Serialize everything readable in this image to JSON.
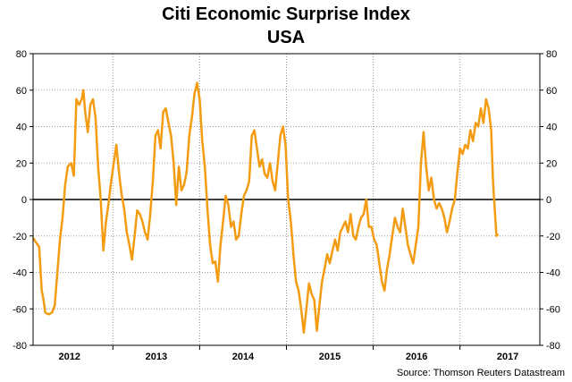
{
  "chart_data": {
    "type": "line",
    "title": "Citi Economic Surprise Index",
    "subtitle": "USA",
    "source": "Source: Thomson Reuters Datastream",
    "ylim": [
      -80,
      80
    ],
    "yticks": [
      80,
      60,
      40,
      20,
      0,
      -20,
      -40,
      -60,
      -80
    ],
    "xlim": [
      2011.58,
      2017.42
    ],
    "x_categories": [
      "2012",
      "2013",
      "2014",
      "2015",
      "2016",
      "2017"
    ],
    "x_category_centers": [
      2012.0,
      2013.0,
      2014.0,
      2015.0,
      2016.0,
      2017.05
    ],
    "x_dividers": [
      2012.5,
      2013.5,
      2014.5,
      2015.5,
      2016.5
    ],
    "grid": true,
    "series_color": "#f39c12",
    "zero_line_color": "#000000",
    "series": [
      {
        "name": "",
        "points": [
          [
            2011.58,
            -21
          ],
          [
            2011.62,
            -24
          ],
          [
            2011.65,
            -26
          ],
          [
            2011.68,
            -50
          ],
          [
            2011.7,
            -55
          ],
          [
            2011.72,
            -62
          ],
          [
            2011.76,
            -63
          ],
          [
            2011.8,
            -62
          ],
          [
            2011.83,
            -58
          ],
          [
            2011.86,
            -40
          ],
          [
            2011.89,
            -22
          ],
          [
            2011.92,
            -10
          ],
          [
            2011.95,
            8
          ],
          [
            2011.98,
            18
          ],
          [
            2012.02,
            20
          ],
          [
            2012.05,
            13
          ],
          [
            2012.08,
            55
          ],
          [
            2012.11,
            52
          ],
          [
            2012.14,
            55
          ],
          [
            2012.16,
            60
          ],
          [
            2012.18,
            48
          ],
          [
            2012.21,
            37
          ],
          [
            2012.24,
            52
          ],
          [
            2012.27,
            55
          ],
          [
            2012.3,
            45
          ],
          [
            2012.33,
            18
          ],
          [
            2012.36,
            0
          ],
          [
            2012.39,
            -28
          ],
          [
            2012.42,
            -12
          ],
          [
            2012.45,
            -2
          ],
          [
            2012.48,
            10
          ],
          [
            2012.51,
            20
          ],
          [
            2012.54,
            30
          ],
          [
            2012.57,
            15
          ],
          [
            2012.6,
            3
          ],
          [
            2012.63,
            -5
          ],
          [
            2012.66,
            -18
          ],
          [
            2012.69,
            -25
          ],
          [
            2012.72,
            -33
          ],
          [
            2012.75,
            -20
          ],
          [
            2012.78,
            -6
          ],
          [
            2012.81,
            -8
          ],
          [
            2012.84,
            -12
          ],
          [
            2012.87,
            -18
          ],
          [
            2012.9,
            -22
          ],
          [
            2012.93,
            -8
          ],
          [
            2012.96,
            10
          ],
          [
            2012.99,
            35
          ],
          [
            2013.02,
            38
          ],
          [
            2013.05,
            28
          ],
          [
            2013.08,
            48
          ],
          [
            2013.11,
            50
          ],
          [
            2013.14,
            42
          ],
          [
            2013.17,
            35
          ],
          [
            2013.2,
            20
          ],
          [
            2013.23,
            -3
          ],
          [
            2013.26,
            18
          ],
          [
            2013.29,
            5
          ],
          [
            2013.32,
            8
          ],
          [
            2013.35,
            15
          ],
          [
            2013.38,
            35
          ],
          [
            2013.41,
            45
          ],
          [
            2013.44,
            58
          ],
          [
            2013.47,
            64
          ],
          [
            2013.5,
            55
          ],
          [
            2013.53,
            32
          ],
          [
            2013.56,
            18
          ],
          [
            2013.59,
            -5
          ],
          [
            2013.62,
            -25
          ],
          [
            2013.65,
            -35
          ],
          [
            2013.68,
            -34
          ],
          [
            2013.71,
            -45
          ],
          [
            2013.74,
            -25
          ],
          [
            2013.77,
            -12
          ],
          [
            2013.8,
            2
          ],
          [
            2013.83,
            -3
          ],
          [
            2013.86,
            -15
          ],
          [
            2013.89,
            -12
          ],
          [
            2013.92,
            -22
          ],
          [
            2013.95,
            -20
          ],
          [
            2013.98,
            -8
          ],
          [
            2014.01,
            2
          ],
          [
            2014.04,
            5
          ],
          [
            2014.07,
            10
          ],
          [
            2014.1,
            35
          ],
          [
            2014.13,
            38
          ],
          [
            2014.16,
            28
          ],
          [
            2014.19,
            18
          ],
          [
            2014.22,
            22
          ],
          [
            2014.25,
            14
          ],
          [
            2014.28,
            12
          ],
          [
            2014.31,
            20
          ],
          [
            2014.34,
            10
          ],
          [
            2014.37,
            5
          ],
          [
            2014.4,
            20
          ],
          [
            2014.43,
            35
          ],
          [
            2014.46,
            40
          ],
          [
            2014.49,
            30
          ],
          [
            2014.52,
            0
          ],
          [
            2014.55,
            -12
          ],
          [
            2014.58,
            -30
          ],
          [
            2014.61,
            -45
          ],
          [
            2014.64,
            -50
          ],
          [
            2014.67,
            -60
          ],
          [
            2014.7,
            -73
          ],
          [
            2014.73,
            -60
          ],
          [
            2014.76,
            -46
          ],
          [
            2014.79,
            -52
          ],
          [
            2014.82,
            -55
          ],
          [
            2014.85,
            -72
          ],
          [
            2014.88,
            -58
          ],
          [
            2014.91,
            -45
          ],
          [
            2014.94,
            -38
          ],
          [
            2014.97,
            -30
          ],
          [
            2015.0,
            -35
          ],
          [
            2015.03,
            -28
          ],
          [
            2015.06,
            -22
          ],
          [
            2015.09,
            -28
          ],
          [
            2015.12,
            -18
          ],
          [
            2015.15,
            -15
          ],
          [
            2015.18,
            -12
          ],
          [
            2015.21,
            -18
          ],
          [
            2015.24,
            -8
          ],
          [
            2015.27,
            -20
          ],
          [
            2015.3,
            -22
          ],
          [
            2015.33,
            -15
          ],
          [
            2015.36,
            -10
          ],
          [
            2015.39,
            -8
          ],
          [
            2015.42,
            0
          ],
          [
            2015.45,
            -15
          ],
          [
            2015.48,
            -15
          ],
          [
            2015.51,
            -22
          ],
          [
            2015.54,
            -25
          ],
          [
            2015.57,
            -35
          ],
          [
            2015.6,
            -45
          ],
          [
            2015.63,
            -50
          ],
          [
            2015.66,
            -38
          ],
          [
            2015.69,
            -30
          ],
          [
            2015.72,
            -20
          ],
          [
            2015.75,
            -10
          ],
          [
            2015.78,
            -15
          ],
          [
            2015.81,
            -18
          ],
          [
            2015.84,
            -5
          ],
          [
            2015.87,
            -15
          ],
          [
            2015.9,
            -25
          ],
          [
            2015.93,
            -30
          ],
          [
            2015.96,
            -35
          ],
          [
            2015.99,
            -25
          ],
          [
            2016.02,
            -15
          ],
          [
            2016.05,
            20
          ],
          [
            2016.08,
            37
          ],
          [
            2016.11,
            18
          ],
          [
            2016.14,
            5
          ],
          [
            2016.17,
            12
          ],
          [
            2016.2,
            0
          ],
          [
            2016.23,
            -5
          ],
          [
            2016.26,
            -2
          ],
          [
            2016.29,
            -5
          ],
          [
            2016.32,
            -10
          ],
          [
            2016.35,
            -18
          ],
          [
            2016.38,
            -12
          ],
          [
            2016.41,
            -5
          ],
          [
            2016.44,
            0
          ],
          [
            2016.47,
            15
          ],
          [
            2016.5,
            28
          ],
          [
            2016.53,
            25
          ],
          [
            2016.56,
            30
          ],
          [
            2016.59,
            28
          ],
          [
            2016.62,
            38
          ],
          [
            2016.65,
            32
          ],
          [
            2016.68,
            42
          ],
          [
            2016.71,
            40
          ],
          [
            2016.74,
            50
          ],
          [
            2016.77,
            42
          ],
          [
            2016.8,
            55
          ],
          [
            2016.83,
            50
          ],
          [
            2016.86,
            38
          ],
          [
            2016.88,
            10
          ],
          [
            2016.9,
            -5
          ],
          [
            2016.92,
            -20
          ],
          [
            2016.94,
            -19
          ]
        ]
      }
    ]
  }
}
